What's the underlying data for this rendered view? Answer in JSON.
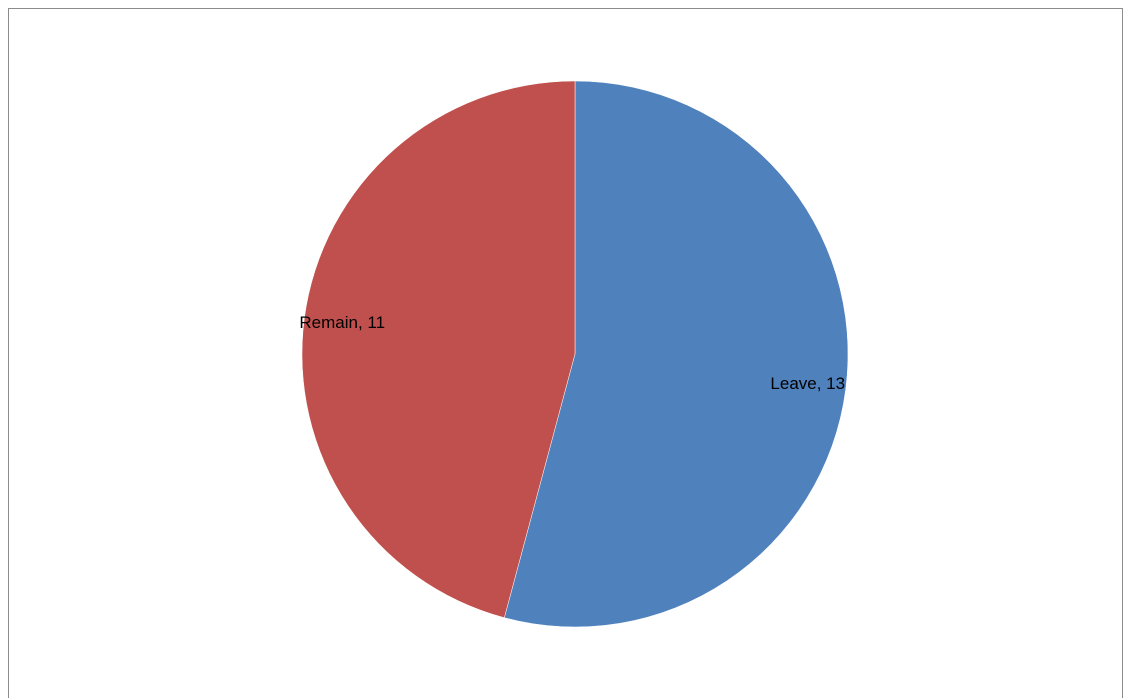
{
  "chart_data": {
    "type": "pie",
    "categories": [
      "Leave",
      "Remain"
    ],
    "values": [
      13,
      11
    ],
    "colors": [
      "#4f81bd",
      "#c0504d"
    ],
    "data_labels": [
      "Leave, 13",
      "Remain, 11"
    ],
    "start_angle": "12 o'clock",
    "direction": "clockwise",
    "legend": "none"
  }
}
